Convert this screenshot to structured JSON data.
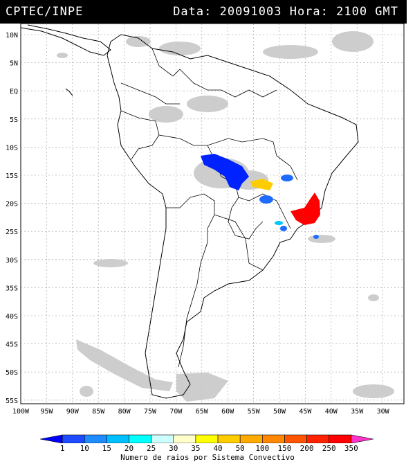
{
  "header": {
    "source": "CPTEC/INPE",
    "datetime": "Data: 20091003 Hora: 2100 GMT"
  },
  "lat_labels": [
    "10N",
    "5N",
    "EQ",
    "5S",
    "10S",
    "15S",
    "20S",
    "25S",
    "30S",
    "35S",
    "40S",
    "45S",
    "50S",
    "55S"
  ],
  "lon_labels": [
    "100W",
    "95W",
    "90W",
    "85W",
    "80W",
    "75W",
    "70W",
    "65W",
    "60W",
    "55W",
    "50W",
    "45W",
    "40W",
    "35W",
    "30W"
  ],
  "colorbar": {
    "labels": [
      "1",
      "10",
      "15",
      "20",
      "25",
      "30",
      "35",
      "40",
      "50",
      "100",
      "150",
      "200",
      "250",
      "350"
    ],
    "colors": [
      "#0000ff",
      "#1e4bff",
      "#1e8cff",
      "#00bfff",
      "#00ffff",
      "#ccffff",
      "#ffffcc",
      "#ffff00",
      "#ffcc00",
      "#ffaa00",
      "#ff8800",
      "#ff5500",
      "#ff2200",
      "#ff0000",
      "#ff33cc"
    ],
    "caption": "Numero de raios por Sistema Convectivo"
  }
}
